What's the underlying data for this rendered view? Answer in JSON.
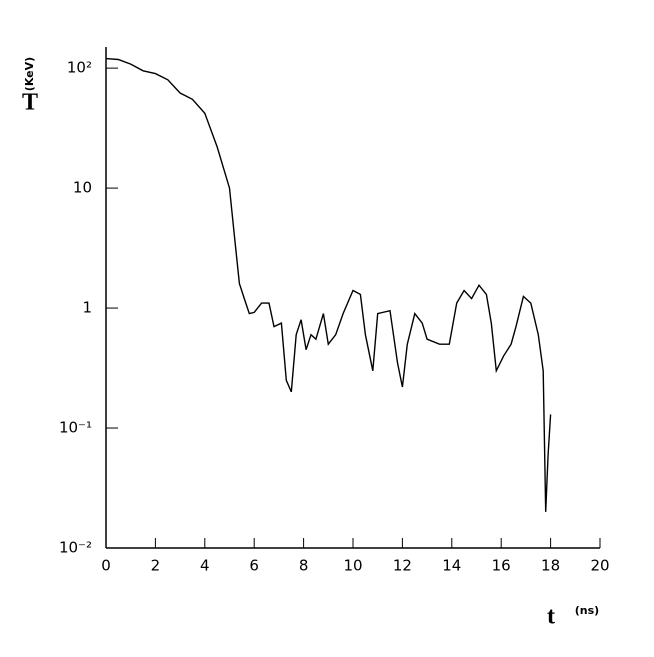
{
  "chart_data": {
    "type": "line",
    "log_y": true,
    "ylabel": "T",
    "yunit": "(KeV)",
    "xlabel": "t",
    "xunit": "(ns)",
    "xlim": [
      0,
      20
    ],
    "xticks": [
      0,
      2,
      4,
      6,
      8,
      10,
      12,
      14,
      16,
      18,
      20
    ],
    "ylim": [
      0.01,
      150
    ],
    "yticks": [
      {
        "value": 0.01,
        "label": "10⁻²"
      },
      {
        "value": 0.1,
        "label": "10⁻¹"
      },
      1,
      10,
      {
        "value": 100,
        "label": "10²"
      }
    ],
    "color": "#000000",
    "x": [
      0,
      0.5,
      1,
      1.5,
      2,
      2.5,
      3,
      3.5,
      4,
      4.5,
      5,
      5.2,
      5.4,
      5.6,
      5.8,
      6,
      6.3,
      6.6,
      6.8,
      7.1,
      7.3,
      7.5,
      7.7,
      7.9,
      8.1,
      8.3,
      8.5,
      8.8,
      9.0,
      9.3,
      9.6,
      10,
      10.3,
      10.5,
      10.8,
      11.0,
      11.5,
      11.8,
      12.0,
      12.2,
      12.5,
      12.8,
      13.0,
      13.5,
      13.9,
      14.2,
      14.5,
      14.8,
      15.1,
      15.4,
      15.6,
      15.8,
      16.1,
      16.4,
      16.6,
      16.9,
      17.2,
      17.5,
      17.7,
      17.8,
      17.9,
      18.0
    ],
    "values": [
      120,
      118,
      108,
      95,
      90,
      80,
      62,
      55,
      42,
      22,
      10,
      4,
      1.6,
      1.2,
      0.9,
      0.92,
      1.1,
      1.1,
      0.7,
      0.75,
      0.25,
      0.2,
      0.6,
      0.8,
      0.45,
      0.6,
      0.55,
      0.9,
      0.5,
      0.6,
      0.9,
      1.4,
      1.3,
      0.6,
      0.3,
      0.9,
      0.95,
      0.35,
      0.22,
      0.5,
      0.9,
      0.75,
      0.55,
      0.5,
      0.5,
      1.1,
      1.4,
      1.2,
      1.55,
      1.3,
      0.75,
      0.3,
      0.4,
      0.5,
      0.7,
      1.25,
      1.1,
      0.6,
      0.3,
      0.02,
      0.06,
      0.13
    ]
  }
}
